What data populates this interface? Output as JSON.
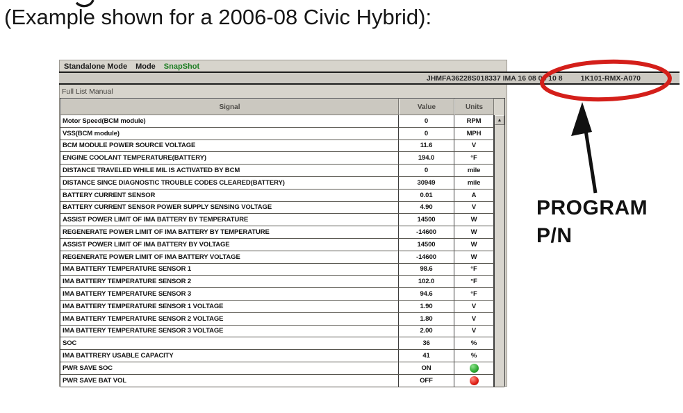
{
  "page": {
    "caption": "(Example shown for a 2006-08 Civic Hybrid):"
  },
  "scan_tool": {
    "menu": {
      "items": [
        {
          "label": "Standalone Mode"
        },
        {
          "label": "Mode"
        },
        {
          "label": "SnapShot",
          "color": "#1e7e24"
        }
      ]
    },
    "header_bar": {
      "vehicle_info": "JHMFA36228S018337  IMA  16 08 04 10 8",
      "program_pn": "1K101-RMX-A070"
    },
    "tab_label": "Full List Manual",
    "table": {
      "columns": {
        "signal": "Signal",
        "value": "Value",
        "units": "Units"
      },
      "status_on_color": "#2ea832",
      "status_off_color": "#e01f15",
      "rows": [
        {
          "signal": "Motor Speed(BCM module)",
          "value": "0",
          "units": "RPM"
        },
        {
          "signal": "VSS(BCM module)",
          "value": "0",
          "units": "MPH"
        },
        {
          "signal": "BCM MODULE POWER SOURCE VOLTAGE",
          "value": "11.6",
          "units": "V"
        },
        {
          "signal": "ENGINE COOLANT TEMPERATURE(BATTERY)",
          "value": "194.0",
          "units": "°F"
        },
        {
          "signal": "DISTANCE TRAVELED WHILE MIL IS ACTIVATED BY BCM",
          "value": "0",
          "units": "mile"
        },
        {
          "signal": "DISTANCE SINCE DIAGNOSTIC TROUBLE CODES CLEARED(BATTERY)",
          "value": "30949",
          "units": "mile"
        },
        {
          "signal": "BATTERY CURRENT SENSOR",
          "value": "0.01",
          "units": "A"
        },
        {
          "signal": "BATTERY CURRENT SENSOR POWER SUPPLY SENSING VOLTAGE",
          "value": "4.90",
          "units": "V"
        },
        {
          "signal": "ASSIST POWER LIMIT OF IMA BATTERY BY TEMPERATURE",
          "value": "14500",
          "units": "W"
        },
        {
          "signal": "REGENERATE POWER LIMIT OF IMA BATTERY BY TEMPERATURE",
          "value": "-14600",
          "units": "W"
        },
        {
          "signal": "ASSIST POWER LIMIT OF IMA BATTERY BY VOLTAGE",
          "value": "14500",
          "units": "W"
        },
        {
          "signal": "REGENERATE POWER LIMIT OF IMA BATTERY VOLTAGE",
          "value": "-14600",
          "units": "W"
        },
        {
          "signal": "IMA BATTERY TEMPERATURE SENSOR 1",
          "value": "98.6",
          "units": "°F"
        },
        {
          "signal": "IMA BATTERY TEMPERATURE SENSOR 2",
          "value": "102.0",
          "units": "°F"
        },
        {
          "signal": "IMA BATTERY TEMPERATURE SENSOR 3",
          "value": "94.6",
          "units": "°F"
        },
        {
          "signal": "IMA BATTERY TEMPERATURE SENSOR 1 VOLTAGE",
          "value": "1.90",
          "units": "V"
        },
        {
          "signal": "IMA BATTERY TEMPERATURE SENSOR 2 VOLTAGE",
          "value": "1.80",
          "units": "V"
        },
        {
          "signal": "IMA BATTERY TEMPERATURE SENSOR 3 VOLTAGE",
          "value": "2.00",
          "units": "V"
        },
        {
          "signal": "SOC",
          "value": "36",
          "units": "%"
        },
        {
          "signal": "IMA BATTRERY USABLE CAPACITY",
          "value": "41",
          "units": "%"
        },
        {
          "signal": "PWR SAVE SOC",
          "value": "ON",
          "units": "",
          "indicator": "on"
        },
        {
          "signal": "PWR SAVE BAT VOL",
          "value": "OFF",
          "units": "",
          "indicator": "off"
        }
      ]
    }
  },
  "annotation": {
    "circle_color": "#d41f1a",
    "arrow_color": "#111111",
    "label_line1": "PROGRAM",
    "label_line2": "P/N"
  }
}
